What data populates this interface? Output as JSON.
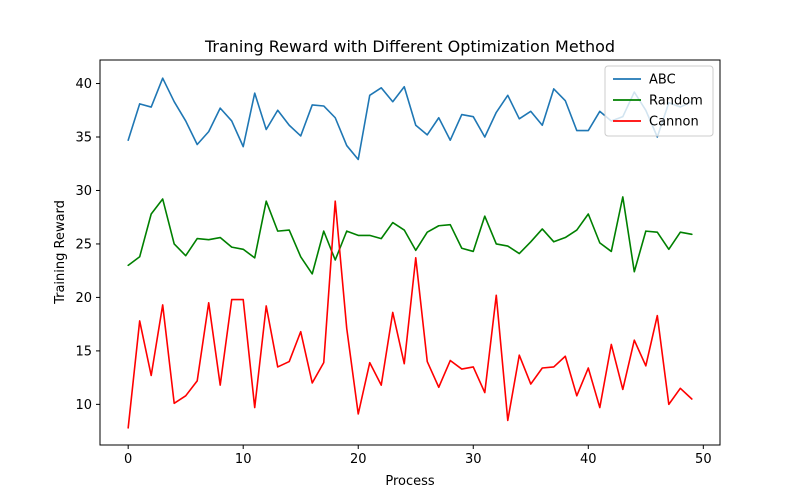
{
  "chart_data": {
    "type": "line",
    "title": "Traning Reward with Different Optimization Method",
    "xlabel": "Process",
    "ylabel": "Training Reward",
    "xlim": [
      -2.45,
      51.45
    ],
    "ylim": [
      6.2,
      42.2
    ],
    "xticks": [
      0,
      10,
      20,
      30,
      40,
      50
    ],
    "yticks": [
      10,
      15,
      20,
      25,
      30,
      35,
      40
    ],
    "grid": false,
    "legend_position": "top-right",
    "x": [
      0,
      1,
      2,
      3,
      4,
      5,
      6,
      7,
      8,
      9,
      10,
      11,
      12,
      13,
      14,
      15,
      16,
      17,
      18,
      19,
      20,
      21,
      22,
      23,
      24,
      25,
      26,
      27,
      28,
      29,
      30,
      31,
      32,
      33,
      34,
      35,
      36,
      37,
      38,
      39,
      40,
      41,
      42,
      43,
      44,
      45,
      46,
      47,
      48,
      49
    ],
    "series": [
      {
        "name": "ABC",
        "color": "#1f77b4",
        "values": [
          34.7,
          38.1,
          37.8,
          40.5,
          38.3,
          36.5,
          34.3,
          35.5,
          37.7,
          36.5,
          34.1,
          39.1,
          35.7,
          37.5,
          36.1,
          35.1,
          38.0,
          37.9,
          36.8,
          34.2,
          32.9,
          38.9,
          39.6,
          38.3,
          39.7,
          36.1,
          35.2,
          36.8,
          34.7,
          37.1,
          36.9,
          35.0,
          37.3,
          38.9,
          36.7,
          37.4,
          36.1,
          39.5,
          38.4,
          35.6,
          35.6,
          37.4,
          36.5,
          36.9,
          39.2,
          37.5,
          35.0,
          38.2,
          37.8,
          38.3
        ]
      },
      {
        "name": "Random",
        "color": "#008000",
        "values": [
          23.0,
          23.8,
          27.8,
          29.2,
          25.0,
          23.9,
          25.5,
          25.4,
          25.6,
          24.7,
          24.5,
          23.7,
          29.0,
          26.2,
          26.3,
          23.8,
          22.2,
          26.2,
          23.5,
          26.2,
          25.8,
          25.8,
          25.5,
          27.0,
          26.3,
          24.4,
          26.1,
          26.7,
          26.8,
          24.6,
          24.3,
          27.6,
          25.0,
          24.8,
          24.1,
          25.2,
          26.4,
          25.2,
          25.6,
          26.3,
          27.8,
          25.1,
          24.3,
          29.4,
          22.4,
          26.2,
          26.1,
          24.5,
          26.1,
          25.9
        ]
      },
      {
        "name": "Cannon",
        "color": "#ff0000",
        "values": [
          7.8,
          17.8,
          12.7,
          19.3,
          10.1,
          10.8,
          12.2,
          19.5,
          11.8,
          19.8,
          19.8,
          9.7,
          19.2,
          13.5,
          14.0,
          16.8,
          12.0,
          13.9,
          29.0,
          17.1,
          9.1,
          13.9,
          11.8,
          18.6,
          13.8,
          23.7,
          14.0,
          11.6,
          14.1,
          13.3,
          13.5,
          11.1,
          20.2,
          8.5,
          14.6,
          11.9,
          13.4,
          13.5,
          14.5,
          10.8,
          13.4,
          9.7,
          15.6,
          11.4,
          16.0,
          13.6,
          18.3,
          10.0,
          11.5,
          10.5
        ]
      }
    ]
  }
}
